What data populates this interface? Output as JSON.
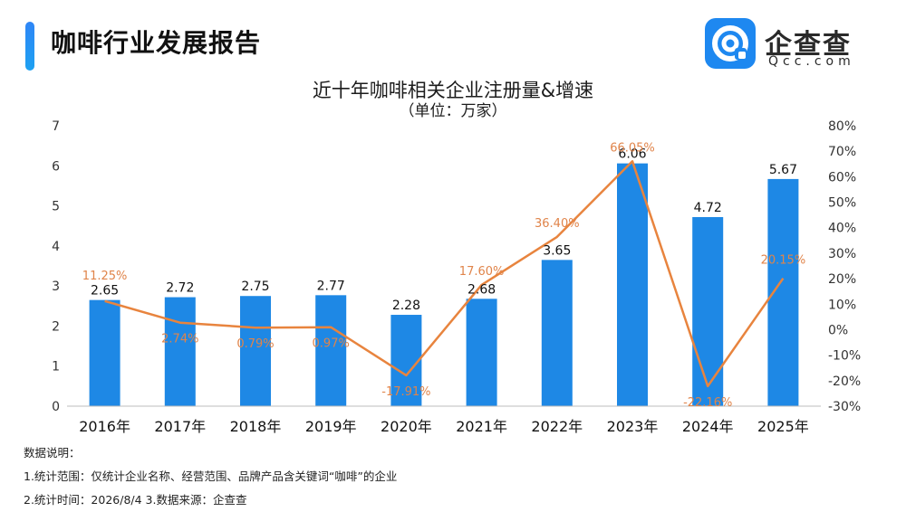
{
  "header": {
    "title": "咖啡行业发展报告"
  },
  "logo": {
    "name": "企查查",
    "sub": "Qcc.com"
  },
  "colors": {
    "bar": "#1e88e5",
    "line": "#e8843e",
    "growth_label": "#e0844a",
    "accent": "#2f86f6"
  },
  "chart_data": {
    "type": "bar+line",
    "title": "近十年咖啡相关企业注册量&增速",
    "subtitle": "（单位：万家）",
    "categories": [
      "2016年",
      "2017年",
      "2018年",
      "2019年",
      "2020年",
      "2021年",
      "2022年",
      "2023年",
      "2024年",
      "2025年"
    ],
    "series": [
      {
        "type": "bar",
        "axis": "left",
        "values": [
          2.65,
          2.72,
          2.75,
          2.77,
          2.28,
          2.68,
          3.65,
          6.06,
          4.72,
          5.67
        ]
      },
      {
        "type": "line",
        "axis": "right",
        "values": [
          11.25,
          2.74,
          0.79,
          0.97,
          -17.91,
          17.6,
          36.4,
          66.05,
          -22.16,
          20.15
        ]
      }
    ],
    "bar_labels": [
      "2.65",
      "2.72",
      "2.75",
      "2.77",
      "2.28",
      "2.68",
      "3.65",
      "6.06",
      "4.72",
      "5.67"
    ],
    "line_labels": [
      "11.25%",
      "2.74%",
      "0.79%",
      "0.97%",
      "-17.91%",
      "17.60%",
      "36.40%",
      "66.05%",
      "-22.16%",
      "20.15%"
    ],
    "y_left": {
      "ticks": [
        "0",
        "1",
        "2",
        "3",
        "4",
        "5",
        "6",
        "7"
      ],
      "range": [
        0,
        7
      ]
    },
    "y_right": {
      "ticks": [
        "-30%",
        "-20%",
        "-10%",
        "0%",
        "10%",
        "20%",
        "30%",
        "40%",
        "50%",
        "60%",
        "70%",
        "80%"
      ],
      "range": [
        -30,
        80
      ]
    },
    "grid": false,
    "legend": "none"
  },
  "notes": {
    "heading": "数据说明：",
    "line1": "1.统计范围：仅统计企业名称、经营范围、品牌产品含关键词“咖啡”的企业",
    "line2": "2.统计时间：2026/8/4  3.数据来源：企查查"
  }
}
